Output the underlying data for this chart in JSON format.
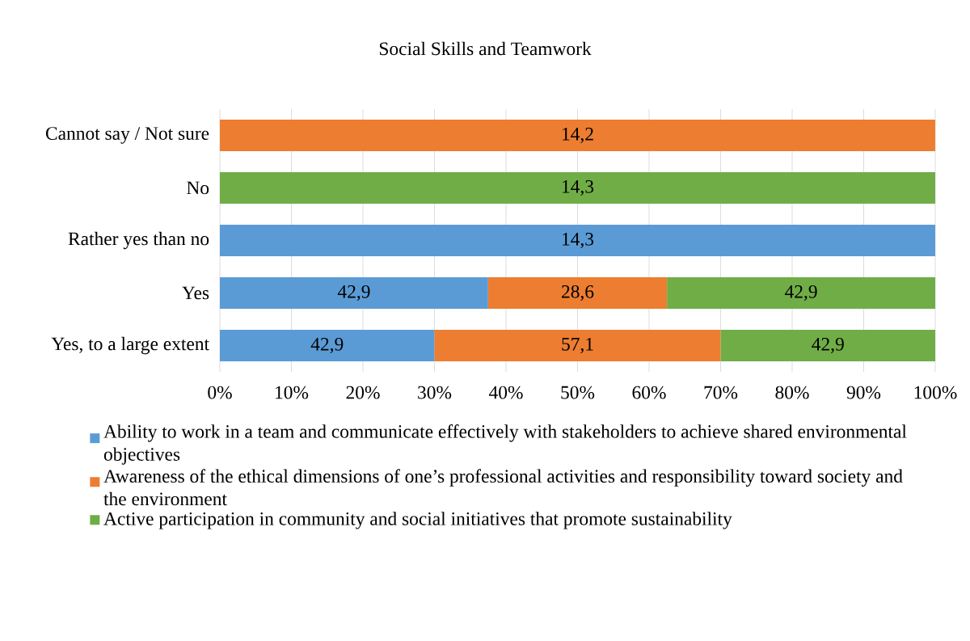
{
  "chart_data": {
    "type": "bar",
    "orientation": "horizontal",
    "stacked": true,
    "title": "Social Skills and Teamwork",
    "categories": [
      "Cannot say / Not sure",
      "No",
      "Rather yes than no",
      "Yes",
      "Yes, to a large extent"
    ],
    "series": [
      {
        "name": "Ability to work in a team and communicate effectively with stakeholders to achieve shared environmental objectives",
        "color": "#5b9bd5",
        "values": [
          null,
          null,
          100,
          37.5,
          30
        ]
      },
      {
        "name": "Awareness of the ethical dimensions of one’s professional activities and responsibility toward society and the environment",
        "color": "#ed7d31",
        "values": [
          100,
          null,
          null,
          25,
          40
        ]
      },
      {
        "name": "Active participation in community and social initiatives that promote sustainability",
        "color": "#70ad47",
        "values": [
          null,
          100,
          null,
          37.5,
          30
        ]
      }
    ],
    "annotations": [
      "14,2",
      "14,3",
      "14,3",
      "42,9",
      "28,6",
      "42,9",
      "42,9",
      "57,1",
      "42,9"
    ],
    "xlim": [
      0,
      100
    ],
    "xticks": [
      {
        "value": 0,
        "label": "0%"
      },
      {
        "value": 10,
        "label": "10%"
      },
      {
        "value": 20,
        "label": "20%"
      },
      {
        "value": 30,
        "label": "30%"
      },
      {
        "value": 40,
        "label": "40%"
      },
      {
        "value": 50,
        "label": "50%"
      },
      {
        "value": 60,
        "label": "60%"
      },
      {
        "value": 70,
        "label": "70%"
      },
      {
        "value": 80,
        "label": "80%"
      },
      {
        "value": 90,
        "label": "90%"
      },
      {
        "value": 100,
        "label": "100%"
      }
    ],
    "grid": "x",
    "legend": "bottom"
  }
}
